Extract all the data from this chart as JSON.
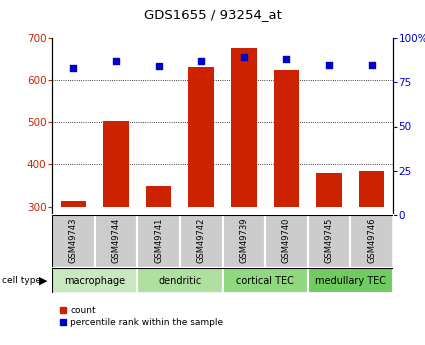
{
  "title": "GDS1655 / 93254_at",
  "samples": [
    "GSM49743",
    "GSM49744",
    "GSM49741",
    "GSM49742",
    "GSM49739",
    "GSM49740",
    "GSM49745",
    "GSM49746"
  ],
  "counts": [
    313,
    503,
    349,
    632,
    676,
    624,
    379,
    385
  ],
  "percentile_ranks": [
    83,
    87,
    84,
    87,
    89,
    88,
    85,
    85
  ],
  "cell_types": [
    {
      "label": "macrophage",
      "start": 0,
      "end": 2
    },
    {
      "label": "dendritic",
      "start": 2,
      "end": 4
    },
    {
      "label": "cortical TEC",
      "start": 4,
      "end": 6
    },
    {
      "label": "medullary TEC",
      "start": 6,
      "end": 8
    }
  ],
  "ylim_left": [
    280,
    700
  ],
  "ylim_right": [
    0,
    100
  ],
  "yticks_left": [
    300,
    400,
    500,
    600,
    700
  ],
  "yticks_right": [
    0,
    25,
    50,
    75,
    100
  ],
  "bar_color": "#cc2200",
  "dot_color": "#0000cc",
  "baseline": 300,
  "bar_width": 0.6,
  "bg_sample_row": "#cccccc",
  "ct_colors": [
    "#c8e8c0",
    "#b0e0a0",
    "#90d880",
    "#70cc60"
  ],
  "divider_color": "white"
}
